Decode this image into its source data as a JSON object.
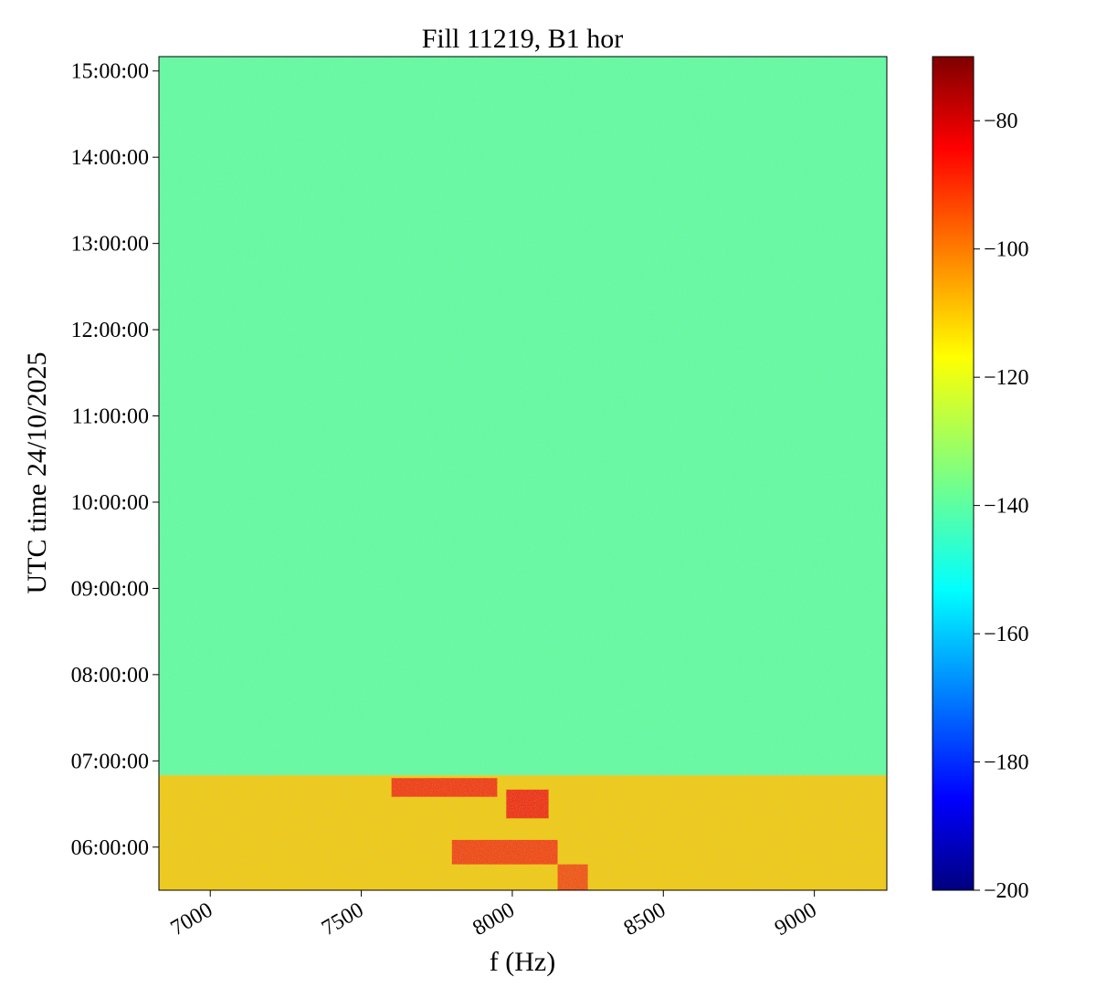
{
  "chart_data": {
    "type": "heatmap",
    "title": "Fill 11219, B1 hor",
    "xlabel": "f (Hz)",
    "ylabel": "UTC time 24/10/2025",
    "xlim": [
      6830,
      9240
    ],
    "ylim_time": [
      "05:30:00",
      "15:10:00"
    ],
    "x_ticks": [
      7000,
      7500,
      8000,
      8500,
      9000
    ],
    "x_tick_labels": [
      "7000",
      "7500",
      "8000",
      "8500",
      "9000"
    ],
    "y_ticks": [
      "06:00:00",
      "07:00:00",
      "08:00:00",
      "09:00:00",
      "10:00:00",
      "11:00:00",
      "12:00:00",
      "13:00:00",
      "14:00:00",
      "15:00:00"
    ],
    "colorbar": {
      "colormap": "jet",
      "range": [
        -200,
        -70
      ],
      "ticks": [
        -80,
        -100,
        -120,
        -140,
        -160,
        -180,
        -200
      ],
      "tick_labels": [
        "−80",
        "−100",
        "−120",
        "−140",
        "−160",
        "−180",
        "−200"
      ]
    },
    "regions": [
      {
        "time_start": "06:50:00",
        "time_end": "15:10:00",
        "f_start": 6830,
        "f_end": 9240,
        "level": -138
      },
      {
        "time_start": "05:30:00",
        "time_end": "06:50:00",
        "f_start": 6830,
        "f_end": 9240,
        "level": -112
      }
    ],
    "hot_spots": [
      {
        "time_start": "06:35:00",
        "time_end": "06:48:00",
        "f_start": 7600,
        "f_end": 7950,
        "level": -88
      },
      {
        "time_start": "06:20:00",
        "time_end": "06:40:00",
        "f_start": 7980,
        "f_end": 8120,
        "level": -86
      },
      {
        "time_start": "05:48:00",
        "time_end": "06:05:00",
        "f_start": 7800,
        "f_end": 8150,
        "level": -90
      },
      {
        "time_start": "05:30:00",
        "time_end": "05:48:00",
        "f_start": 8150,
        "f_end": 8250,
        "level": -92
      }
    ]
  }
}
